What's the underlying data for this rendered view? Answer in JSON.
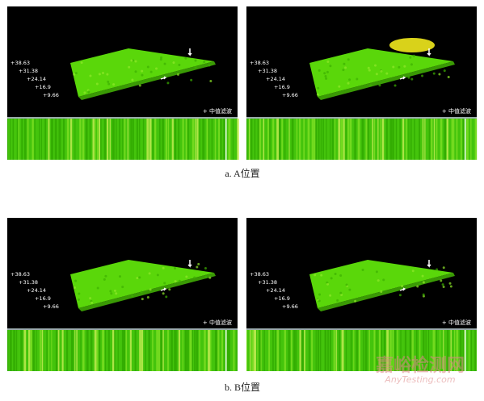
{
  "panels": [
    {
      "ticks": [
        "+38.63",
        "+31.38",
        "+24.14",
        "+16.9",
        "+9.66"
      ],
      "filter_label": "+ 中值滤波"
    },
    {
      "ticks": [
        "+38.63",
        "+31.38",
        "+24.14",
        "+16.9",
        "+9.66"
      ],
      "filter_label": "+ 中值滤波"
    },
    {
      "ticks": [
        "+38.63",
        "+31.38",
        "+24.14",
        "+16.9",
        "+9.66"
      ],
      "filter_label": "+ 中值滤波"
    },
    {
      "ticks": [
        "+38.63",
        "+31.38",
        "+24.14",
        "+16.9",
        "+9.66"
      ],
      "filter_label": "+ 中值滤波"
    }
  ],
  "captions": [
    "a. A位置",
    "b. B位置"
  ],
  "watermark": {
    "cn": "嘉峪检测网",
    "en": "AnyTesting.com"
  }
}
